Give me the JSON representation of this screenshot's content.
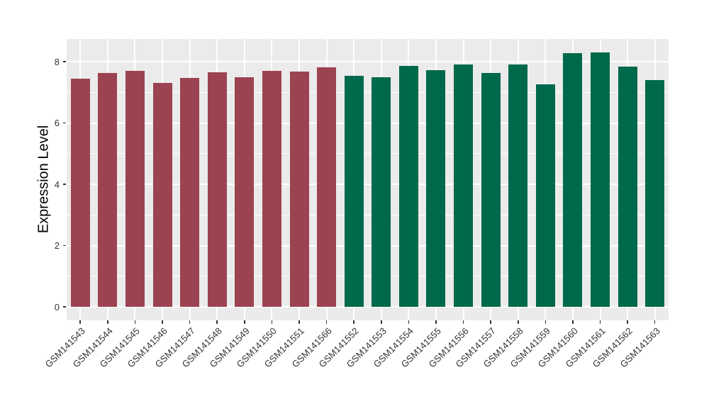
{
  "figure": {
    "background_color": "#FFFFFF",
    "panel_background_color": "#EBEBEB",
    "gridline_color": "#FFFFFF",
    "axis_text_color": "#333333",
    "axis_title_color": "#000000"
  },
  "chart_data": {
    "type": "bar",
    "title": "",
    "xlabel": "",
    "ylabel": "Expression Level",
    "categories": [
      "GSM141543",
      "GSM141544",
      "GSM141545",
      "GSM141546",
      "GSM141547",
      "GSM141548",
      "GSM141549",
      "GSM141550",
      "GSM141551",
      "GSM141566",
      "GSM141552",
      "GSM141553",
      "GSM141554",
      "GSM141555",
      "GSM141556",
      "GSM141557",
      "GSM141558",
      "GSM141559",
      "GSM141560",
      "GSM141561",
      "GSM141562",
      "GSM141563"
    ],
    "values": [
      7.45,
      7.62,
      7.7,
      7.3,
      7.47,
      7.65,
      7.5,
      7.7,
      7.67,
      7.82,
      7.54,
      7.49,
      7.86,
      7.72,
      7.9,
      7.63,
      7.9,
      7.25,
      8.27,
      8.29,
      7.83,
      7.4
    ],
    "bar_colors": [
      "#9C4351",
      "#9C4351",
      "#9C4351",
      "#9C4351",
      "#9C4351",
      "#9C4351",
      "#9C4351",
      "#9C4351",
      "#9C4351",
      "#9C4351",
      "#00694B",
      "#00694B",
      "#00694B",
      "#00694B",
      "#00694B",
      "#00694B",
      "#00694B",
      "#00694B",
      "#00694B",
      "#00694B",
      "#00694B",
      "#00694B"
    ],
    "color_groups": [
      {
        "color": "#9C4351",
        "from_category": "GSM141543",
        "to_category": "GSM141566",
        "count": 10
      },
      {
        "color": "#00694B",
        "from_category": "GSM141552",
        "to_category": "GSM141563",
        "count": 12
      }
    ],
    "ylim": [
      0,
      8.74
    ],
    "yticks": [
      0,
      2,
      4,
      6,
      8
    ],
    "yticks_minor": [
      1,
      3,
      5,
      7
    ],
    "grid": true,
    "legend_position": "none"
  }
}
